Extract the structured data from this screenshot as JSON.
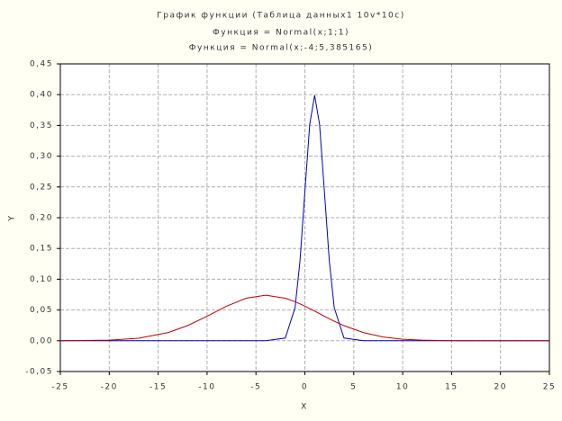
{
  "chart_data": {
    "type": "line",
    "title": "График функции (Таблица данных1 10v*10c)",
    "subtitles": [
      "Функция = Normal(x;1;1)",
      "Функция = Normal(x;-4;5,385165)"
    ],
    "x_label": "X",
    "y_label": "Y",
    "x": [
      -25,
      -20,
      -17,
      -14,
      -12,
      -10,
      -8,
      -6,
      -4,
      -2,
      -1,
      -0.5,
      0,
      0.5,
      1,
      1.5,
      2,
      2.5,
      3,
      4,
      6,
      8,
      10,
      12,
      15,
      20,
      25
    ],
    "series": [
      {
        "color": "#0000c0",
        "values": [
          0,
          0,
          0,
          0,
          0,
          0,
          0,
          0,
          0,
          0.00443,
          0.05399,
          0.1295,
          0.242,
          0.3521,
          0.3989,
          0.3521,
          0.242,
          0.1295,
          0.05399,
          0.00443,
          0,
          0,
          0,
          0,
          0,
          0,
          0
        ]
      },
      {
        "color": "#c00000",
        "values": [
          4e-05,
          0.0009,
          0.00402,
          0.01321,
          0.02457,
          0.03983,
          0.05622,
          0.06915,
          0.07408,
          0.06915,
          0.06344,
          0.05998,
          0.05622,
          0.05225,
          0.04815,
          0.04397,
          0.03983,
          0.03576,
          0.03182,
          0.02457,
          0.01321,
          0.00618,
          0.00253,
          0.0009,
          0.00015,
          0,
          0
        ]
      }
    ],
    "xlim": [
      -25,
      25
    ],
    "xticks": [
      -25,
      -20,
      -15,
      -10,
      -5,
      0,
      5,
      10,
      15,
      20,
      25
    ],
    "ylim": [
      -0.05,
      0.45
    ],
    "yticks": [
      {
        "value": -0.05,
        "label": "-0,05"
      },
      {
        "value": 0,
        "label": "0,00"
      },
      {
        "value": 0.05,
        "label": "0,05"
      },
      {
        "value": 0.1,
        "label": "0,10"
      },
      {
        "value": 0.15,
        "label": "0,15"
      },
      {
        "value": 0.2,
        "label": "0,20"
      },
      {
        "value": 0.25,
        "label": "0,25"
      },
      {
        "value": 0.3,
        "label": "0,30"
      },
      {
        "value": 0.35,
        "label": "0,35"
      },
      {
        "value": 0.4,
        "label": "0,40"
      },
      {
        "value": 0.45,
        "label": "0,45"
      }
    ],
    "grid": true
  }
}
